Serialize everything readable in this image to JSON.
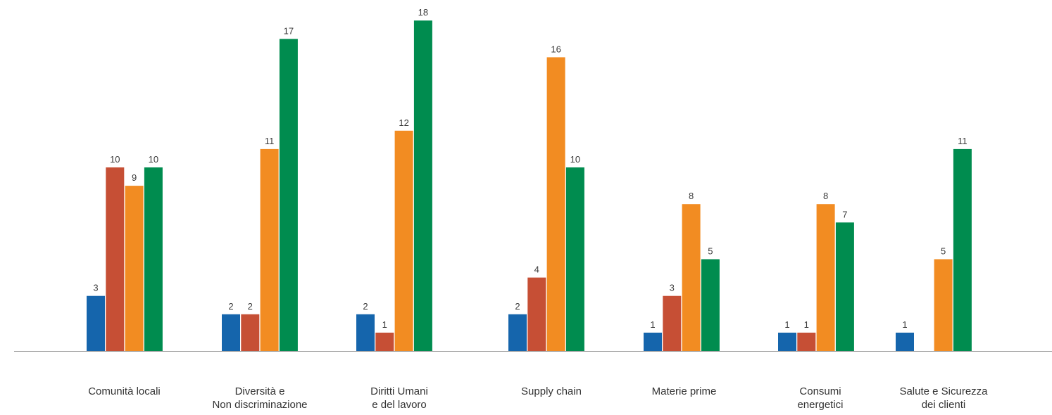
{
  "chart_data": {
    "type": "bar",
    "categories": [
      [
        "Comunità locali"
      ],
      [
        "Diversità e",
        "Non discriminazione"
      ],
      [
        "Diritti Umani",
        "e del lavoro"
      ],
      [
        "Supply chain"
      ],
      [
        "Materie prime"
      ],
      [
        "Consumi",
        "energetici"
      ],
      [
        "Salute e Sicurezza",
        "dei clienti"
      ]
    ],
    "series": [
      {
        "color": "#1565ac",
        "values": [
          3,
          2,
          2,
          2,
          1,
          1,
          1
        ]
      },
      {
        "color": "#c64f35",
        "values": [
          10,
          2,
          1,
          4,
          3,
          1,
          null
        ]
      },
      {
        "color": "#f28c22",
        "values": [
          9,
          11,
          12,
          16,
          8,
          8,
          5
        ]
      },
      {
        "color": "#008c4f",
        "values": [
          10,
          17,
          18,
          10,
          5,
          7,
          11
        ]
      }
    ],
    "ylim": [
      0,
      18
    ],
    "grid": false,
    "legend": "none",
    "data_labels": true,
    "axis_color": "#9a9a9a"
  }
}
